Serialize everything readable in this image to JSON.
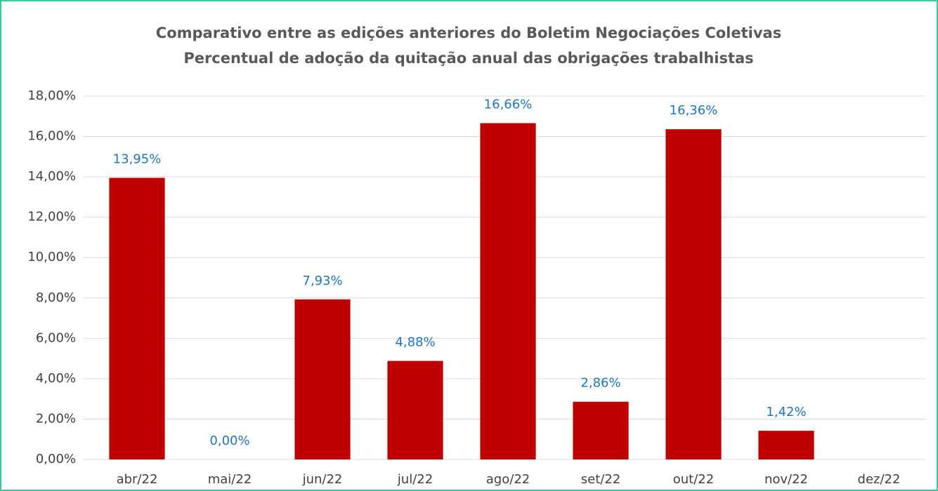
{
  "chart_data": {
    "type": "bar",
    "title": "Comparativo entre as edições anteriores do Boletim Negociações Coletivas",
    "subtitle": "Percentual de adoção da quitação anual das obrigações trabalhistas",
    "categories": [
      "abr/22",
      "mai/22",
      "jun/22",
      "jul/22",
      "ago/22",
      "set/22",
      "out/22",
      "nov/22",
      "dez/22"
    ],
    "values": [
      13.95,
      0,
      7.93,
      4.88,
      16.66,
      2.86,
      16.36,
      1.42,
      null
    ],
    "value_labels": [
      "13,95%",
      "0,00%",
      "7,93%",
      "4,88%",
      "16,66%",
      "2,86%",
      "16,36%",
      "1,42%",
      null
    ],
    "color": "#c00000",
    "label_color": "#1f74c4",
    "ylim": [
      0,
      18
    ],
    "yticks": [
      {
        "value": 0,
        "label": "0,00%"
      },
      {
        "value": 2,
        "label": "2,00%"
      },
      {
        "value": 4,
        "label": "4,00%"
      },
      {
        "value": 6,
        "label": "6,00%"
      },
      {
        "value": 8,
        "label": "8,00%"
      },
      {
        "value": 10,
        "label": "10,00%"
      },
      {
        "value": 12,
        "label": "12,00%"
      },
      {
        "value": 14,
        "label": "14,00%"
      },
      {
        "value": 16,
        "label": "16,00%"
      },
      {
        "value": 18,
        "label": "18,00%"
      }
    ],
    "grid": true
  }
}
